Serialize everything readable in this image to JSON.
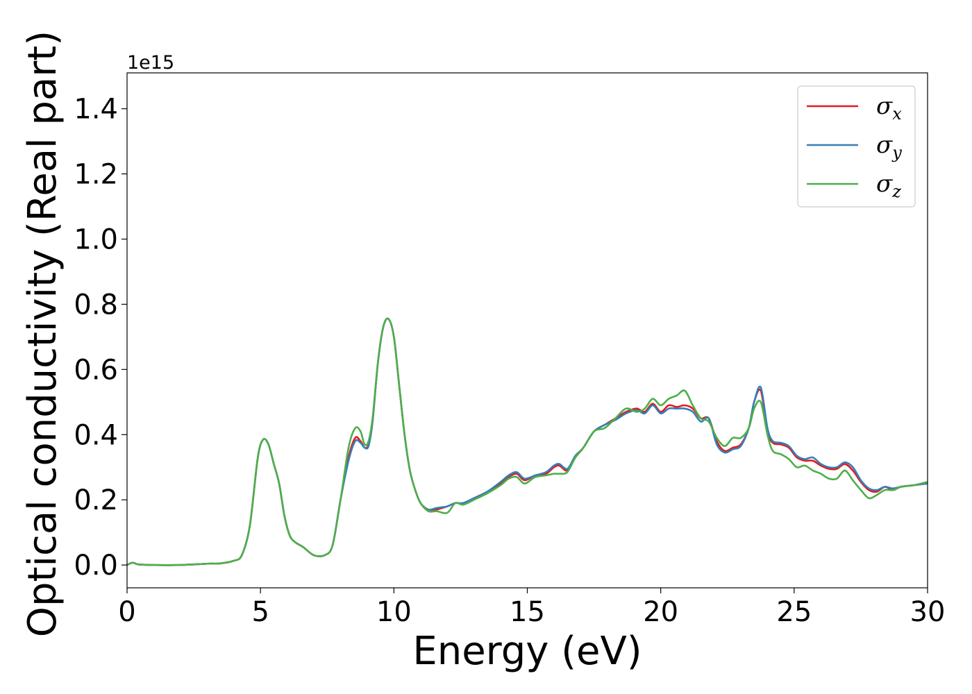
{
  "chart_data": {
    "type": "line",
    "title": "",
    "xlabel": "Energy (eV)",
    "ylabel": "Optical conductivity (Real part)",
    "y_offset_label": "1e15",
    "xlim": [
      0,
      30
    ],
    "ylim": [
      -0.07,
      1.51
    ],
    "xticks": [
      0,
      5,
      10,
      15,
      20,
      25,
      30
    ],
    "xtick_labels": [
      "0",
      "5",
      "10",
      "15",
      "20",
      "25",
      "30"
    ],
    "yticks": [
      0.0,
      0.2,
      0.4,
      0.6,
      0.8,
      1.0,
      1.2,
      1.4
    ],
    "ytick_labels": [
      "0.0",
      "0.2",
      "0.4",
      "0.6",
      "0.8",
      "1.0",
      "1.2",
      "1.4"
    ],
    "grid": false,
    "legend": {
      "position": "top-right"
    },
    "series": [
      {
        "name": "σx",
        "symbol": "σ",
        "subscript": "x",
        "color": "#e41a1c",
        "x": [
          0,
          0.2,
          0.4,
          0.6,
          1,
          2,
          3,
          3.5,
          4,
          4.3,
          4.6,
          4.9,
          5.1,
          5.3,
          5.5,
          5.7,
          5.9,
          6.1,
          6.3,
          6.6,
          7,
          7.4,
          7.7,
          8,
          8.3,
          8.55,
          8.75,
          8.9,
          9.05,
          9.2,
          9.4,
          9.6,
          9.8,
          10.0,
          10.2,
          10.4,
          10.6,
          10.8,
          11.0,
          11.3,
          11.6,
          12,
          12.3,
          12.6,
          13,
          13.5,
          14,
          14.3,
          14.6,
          14.9,
          15.3,
          15.7,
          16,
          16.2,
          16.5,
          16.8,
          17.1,
          17.5,
          17.9,
          18.3,
          18.7,
          19.1,
          19.4,
          19.7,
          20,
          20.3,
          20.6,
          20.9,
          21.2,
          21.5,
          21.8,
          22.1,
          22.4,
          22.7,
          23.0,
          23.3,
          23.5,
          23.75,
          24.0,
          24.2,
          24.5,
          24.8,
          25.1,
          25.4,
          25.7,
          26.0,
          26.3,
          26.6,
          26.9,
          27.2,
          27.5,
          27.8,
          28.1,
          28.4,
          28.7,
          29,
          29.5,
          30
        ],
        "values": [
          0,
          0.007,
          0.002,
          0.001,
          0.0,
          0.0,
          0.004,
          0.005,
          0.013,
          0.03,
          0.12,
          0.33,
          0.385,
          0.37,
          0.31,
          0.25,
          0.15,
          0.09,
          0.07,
          0.055,
          0.03,
          0.03,
          0.06,
          0.2,
          0.33,
          0.39,
          0.38,
          0.36,
          0.37,
          0.44,
          0.62,
          0.73,
          0.755,
          0.7,
          0.55,
          0.4,
          0.29,
          0.23,
          0.19,
          0.165,
          0.17,
          0.18,
          0.19,
          0.19,
          0.205,
          0.225,
          0.25,
          0.27,
          0.28,
          0.26,
          0.275,
          0.28,
          0.3,
          0.305,
          0.29,
          0.33,
          0.36,
          0.41,
          0.43,
          0.45,
          0.47,
          0.48,
          0.47,
          0.495,
          0.47,
          0.49,
          0.485,
          0.49,
          0.48,
          0.45,
          0.45,
          0.38,
          0.35,
          0.36,
          0.37,
          0.42,
          0.5,
          0.535,
          0.41,
          0.375,
          0.37,
          0.36,
          0.33,
          0.32,
          0.32,
          0.305,
          0.295,
          0.295,
          0.31,
          0.29,
          0.255,
          0.23,
          0.225,
          0.24,
          0.23,
          0.24,
          0.245,
          0.25
        ]
      },
      {
        "name": "σy",
        "symbol": "σ",
        "subscript": "y",
        "color": "#377eb8",
        "x": [
          0,
          0.2,
          0.4,
          0.6,
          1,
          2,
          3,
          3.5,
          4,
          4.3,
          4.6,
          4.9,
          5.1,
          5.3,
          5.5,
          5.7,
          5.9,
          6.1,
          6.3,
          6.6,
          7,
          7.4,
          7.7,
          8,
          8.3,
          8.55,
          8.75,
          8.9,
          9.05,
          9.2,
          9.4,
          9.6,
          9.8,
          10.0,
          10.2,
          10.4,
          10.6,
          10.8,
          11.0,
          11.3,
          11.6,
          12,
          12.3,
          12.6,
          13,
          13.5,
          14,
          14.3,
          14.6,
          14.9,
          15.3,
          15.7,
          16,
          16.2,
          16.5,
          16.8,
          17.1,
          17.5,
          17.9,
          18.3,
          18.7,
          19.1,
          19.4,
          19.7,
          20,
          20.3,
          20.6,
          20.9,
          21.2,
          21.5,
          21.8,
          22.1,
          22.4,
          22.7,
          23.0,
          23.3,
          23.5,
          23.75,
          24.0,
          24.2,
          24.5,
          24.8,
          25.1,
          25.4,
          25.7,
          26.0,
          26.3,
          26.6,
          26.9,
          27.2,
          27.5,
          27.8,
          28.1,
          28.4,
          28.7,
          29,
          29.5,
          30
        ],
        "values": [
          0,
          0.007,
          0.002,
          0.001,
          0.0,
          0.0,
          0.004,
          0.005,
          0.013,
          0.03,
          0.12,
          0.33,
          0.385,
          0.37,
          0.31,
          0.25,
          0.15,
          0.09,
          0.07,
          0.055,
          0.03,
          0.03,
          0.06,
          0.2,
          0.32,
          0.38,
          0.375,
          0.36,
          0.365,
          0.44,
          0.62,
          0.73,
          0.755,
          0.7,
          0.55,
          0.4,
          0.29,
          0.23,
          0.19,
          0.17,
          0.175,
          0.18,
          0.19,
          0.19,
          0.205,
          0.225,
          0.255,
          0.275,
          0.285,
          0.265,
          0.275,
          0.285,
          0.305,
          0.31,
          0.295,
          0.335,
          0.36,
          0.41,
          0.43,
          0.445,
          0.465,
          0.475,
          0.465,
          0.49,
          0.465,
          0.48,
          0.48,
          0.48,
          0.47,
          0.44,
          0.45,
          0.37,
          0.345,
          0.355,
          0.365,
          0.42,
          0.5,
          0.545,
          0.42,
          0.38,
          0.375,
          0.365,
          0.335,
          0.325,
          0.33,
          0.31,
          0.3,
          0.3,
          0.315,
          0.3,
          0.26,
          0.235,
          0.23,
          0.24,
          0.235,
          0.24,
          0.245,
          0.25
        ]
      },
      {
        "name": "σz",
        "symbol": "σ",
        "subscript": "z",
        "color": "#4daf4a",
        "x": [
          0,
          0.2,
          0.4,
          0.6,
          1,
          2,
          3,
          3.5,
          4,
          4.3,
          4.6,
          4.9,
          5.1,
          5.3,
          5.5,
          5.7,
          5.9,
          6.1,
          6.3,
          6.6,
          7,
          7.4,
          7.7,
          8,
          8.3,
          8.55,
          8.75,
          8.9,
          9.05,
          9.2,
          9.4,
          9.6,
          9.8,
          10.0,
          10.2,
          10.4,
          10.6,
          10.8,
          11.0,
          11.3,
          11.6,
          12,
          12.3,
          12.6,
          13,
          13.5,
          14,
          14.3,
          14.6,
          14.9,
          15.3,
          15.7,
          16,
          16.2,
          16.5,
          16.8,
          17.1,
          17.5,
          17.9,
          18.3,
          18.7,
          19.1,
          19.4,
          19.7,
          20,
          20.3,
          20.6,
          20.9,
          21.2,
          21.5,
          21.8,
          22.1,
          22.4,
          22.7,
          23.0,
          23.3,
          23.5,
          23.75,
          24.0,
          24.2,
          24.5,
          24.8,
          25.1,
          25.4,
          25.7,
          26.0,
          26.3,
          26.6,
          26.9,
          27.2,
          27.5,
          27.8,
          28.1,
          28.4,
          28.7,
          29,
          29.5,
          30
        ],
        "values": [
          0,
          0.007,
          0.002,
          0.001,
          0.0,
          0.0,
          0.004,
          0.005,
          0.013,
          0.03,
          0.12,
          0.33,
          0.385,
          0.37,
          0.31,
          0.25,
          0.15,
          0.09,
          0.07,
          0.055,
          0.03,
          0.03,
          0.06,
          0.2,
          0.36,
          0.42,
          0.41,
          0.37,
          0.38,
          0.45,
          0.62,
          0.73,
          0.755,
          0.7,
          0.55,
          0.4,
          0.29,
          0.23,
          0.19,
          0.165,
          0.165,
          0.16,
          0.19,
          0.185,
          0.2,
          0.22,
          0.245,
          0.265,
          0.27,
          0.25,
          0.27,
          0.275,
          0.28,
          0.28,
          0.285,
          0.33,
          0.36,
          0.41,
          0.42,
          0.45,
          0.48,
          0.47,
          0.48,
          0.51,
          0.49,
          0.51,
          0.52,
          0.535,
          0.49,
          0.45,
          0.44,
          0.39,
          0.365,
          0.39,
          0.39,
          0.42,
          0.48,
          0.5,
          0.4,
          0.35,
          0.34,
          0.325,
          0.3,
          0.305,
          0.29,
          0.28,
          0.265,
          0.265,
          0.29,
          0.26,
          0.23,
          0.205,
          0.215,
          0.23,
          0.23,
          0.24,
          0.245,
          0.255
        ]
      }
    ]
  }
}
